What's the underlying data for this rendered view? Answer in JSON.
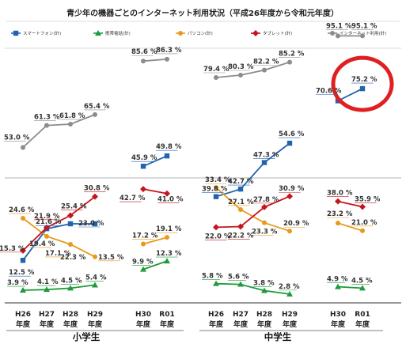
{
  "chart_data": {
    "type": "line",
    "title": "青少年の機器ごとのインターネット利用状況（平成26年度から令和元年度）",
    "legend_placement": "top",
    "categories": [
      "H26\n年度",
      "H27\n年度",
      "H28\n年度",
      "H29\n年度",
      "H30\n年度",
      "R01\n年度"
    ],
    "groups": [
      {
        "name": "小学生",
        "tick_labels": [
          [
            "H26",
            "年度"
          ],
          [
            "H27",
            "年度"
          ],
          [
            "H28",
            "年度"
          ],
          [
            "H29",
            "年度"
          ],
          [
            "H30",
            "年度"
          ],
          [
            "R01",
            "年度"
          ]
        ]
      },
      {
        "name": "中学生",
        "tick_labels": [
          [
            "H26",
            "年度"
          ],
          [
            "H27",
            "年度"
          ],
          [
            "H28",
            "年度"
          ],
          [
            "H29",
            "年度"
          ],
          [
            "H30",
            "年度"
          ],
          [
            "R01",
            "年度"
          ]
        ]
      }
    ],
    "series": [
      {
        "name": "スマートフォン(計)",
        "color": "#2163ae",
        "marker": "square",
        "values": {
          "小学生": [
            12.5,
            21.6,
            23.0,
            23.0,
            45.9,
            49.8
          ],
          "中学生": [
            39.8,
            42.7,
            47.3,
            54.6,
            70.6,
            75.2
          ]
        },
        "labels": {
          "小学生": [
            "12.5 %",
            "21.6 %",
            "23.0 %",
            "",
            "45.9 %",
            "49.8 %"
          ],
          "中学生": [
            "39.8 %",
            "42.7 %",
            "47.3 %",
            "54.6 %",
            "70.6 %",
            "75.2 %"
          ]
        }
      },
      {
        "name": "携帯電話(計)",
        "color": "#1f9a3a",
        "marker": "triangle",
        "values": {
          "小学生": [
            3.9,
            4.1,
            4.5,
            5.4,
            9.9,
            12.3
          ],
          "中学生": [
            5.8,
            5.6,
            3.8,
            2.8,
            4.9,
            4.5
          ]
        },
        "labels": {
          "小学生": [
            "3.9 %",
            "4.1 %",
            "4.5 %",
            "5.4 %",
            "9.9 %",
            "12.3 %"
          ],
          "中学生": [
            "5.8 %",
            "5.6 %",
            "3.8 %",
            "2.8 %",
            "4.9 %",
            "4.5 %"
          ]
        }
      },
      {
        "name": "パソコン(計)",
        "color": "#e8991c",
        "marker": "circle",
        "values": {
          "小学生": [
            24.6,
            19.4,
            17.1,
            13.5,
            17.2,
            19.1
          ],
          "中学生": [
            33.4,
            27.1,
            23.3,
            20.9,
            23.2,
            21.0
          ]
        },
        "labels": {
          "小学生": [
            "24.6 %",
            "19.4 %",
            "17.1 %",
            "13.5 %",
            "17.2 %",
            "19.1 %"
          ],
          "中学生": [
            "33.4 %",
            "27.1 %",
            "23.3 %",
            "20.9 %",
            "23.2 %",
            "21.0 %"
          ]
        }
      },
      {
        "name": "タブレット(計)",
        "color": "#c4161c",
        "marker": "diamond",
        "values": {
          "小学生": [
            15.3,
            21.9,
            25.4,
            30.8,
            42.7,
            41.0
          ],
          "中学生": [
            22.0,
            22.2,
            27.8,
            30.9,
            38.0,
            35.9
          ]
        },
        "labels": {
          "小学生": [
            "15.3 %",
            "21.9 %",
            "25.4 %",
            "30.8 %",
            "42.7 %",
            "41.0 %"
          ],
          "中学生": [
            "22.0 %",
            "22.2 %",
            "27.8 %",
            "30.9 %",
            "38.0 %",
            "35.9 %"
          ]
        }
      },
      {
        "name": "インターネット利用(計)",
        "color": "#8c8c8c",
        "marker": "circle",
        "values": {
          "小学生": [
            53.0,
            61.3,
            61.8,
            65.4,
            85.6,
            86.3
          ],
          "中学生": [
            79.4,
            80.3,
            82.2,
            85.2,
            95.1,
            95.1
          ]
        },
        "labels": {
          "小学生": [
            "53.0 %",
            "61.3 %",
            "61.8 %",
            "65.4 %",
            "85.6 %",
            "86.3 %"
          ],
          "中学生": [
            "79.4 %",
            "80.3 %",
            "82.2 %",
            "85.2 %",
            "95.1 %",
            "95.1 %"
          ]
        }
      }
    ],
    "extra_labels": [
      "22.3 %"
    ],
    "annotation": {
      "type": "red-circle",
      "target": "中学生 スマートフォン(計) R01 75.2 %"
    }
  }
}
